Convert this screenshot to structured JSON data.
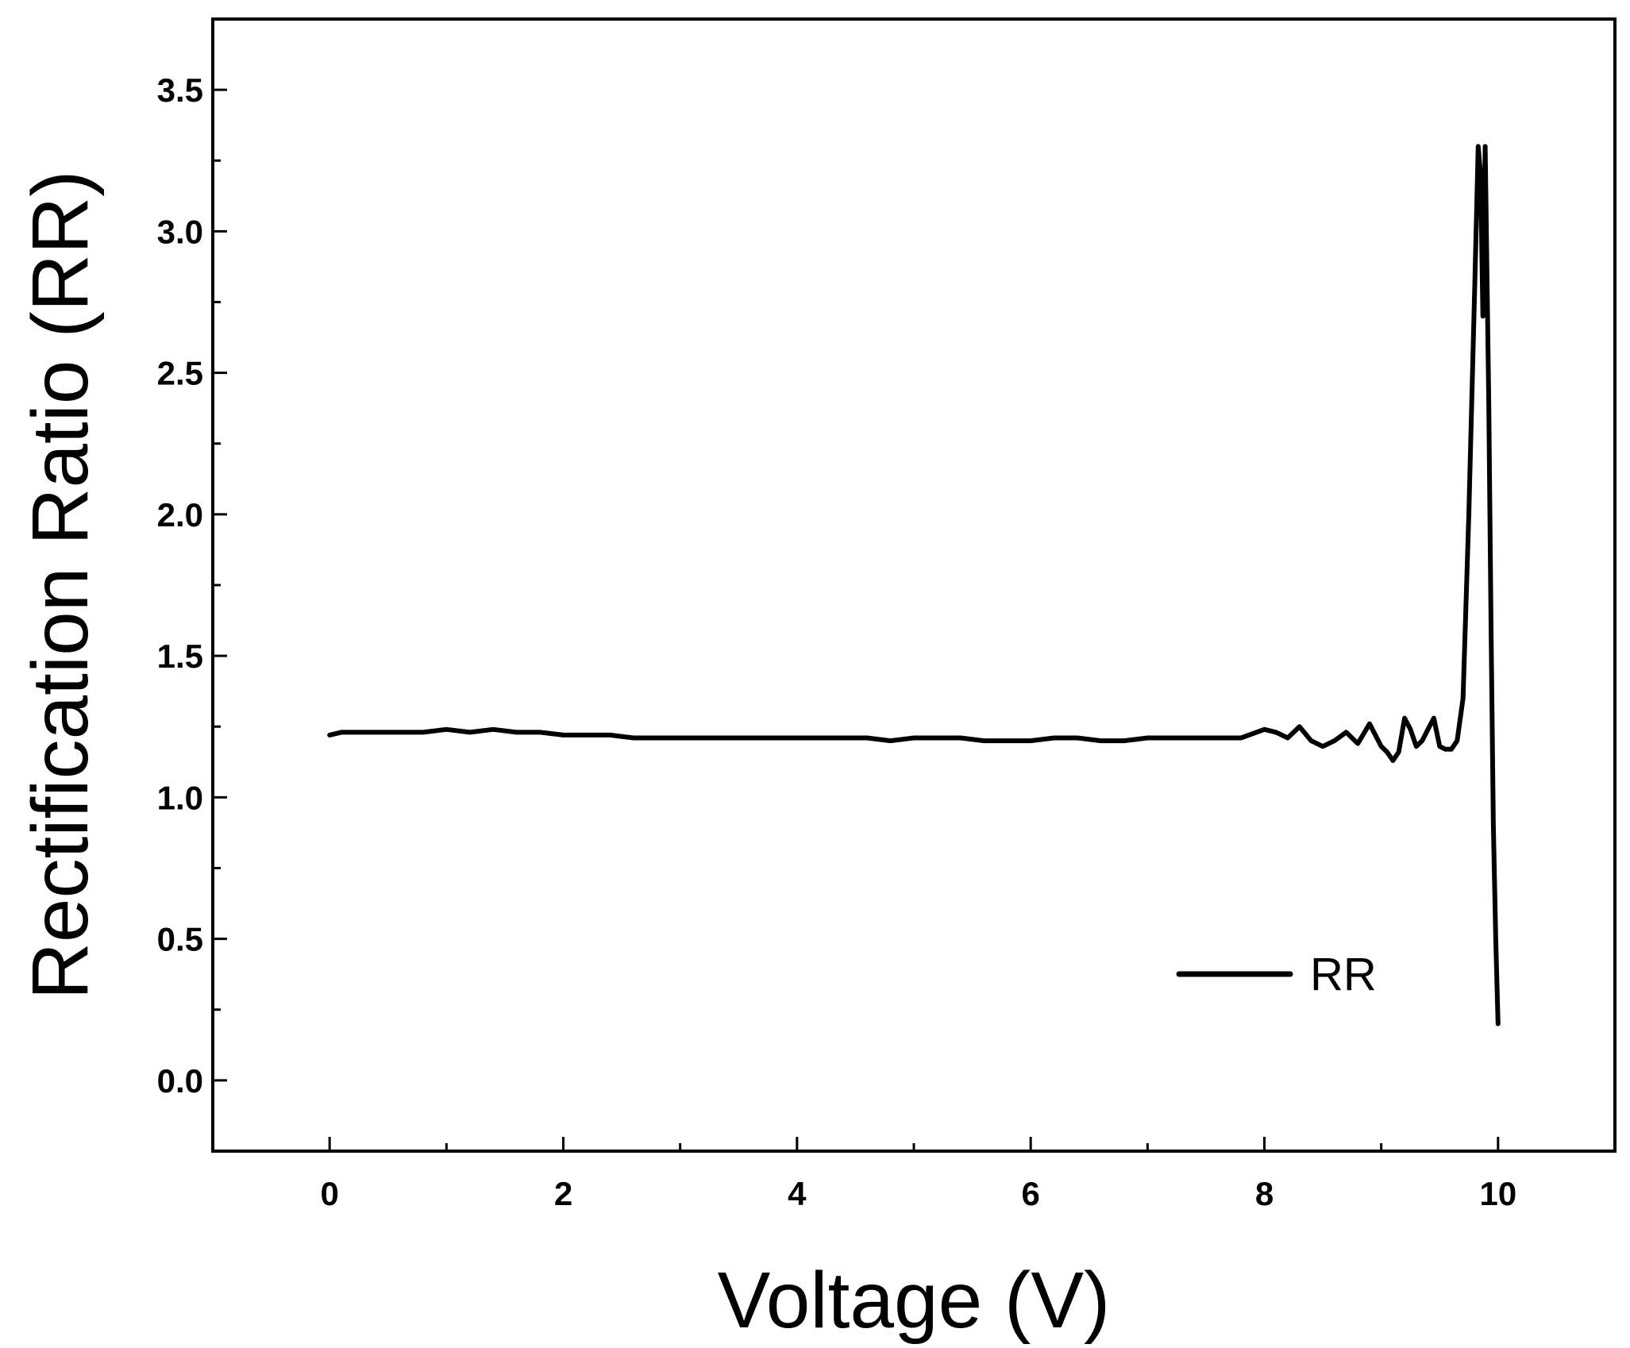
{
  "chart_data": {
    "type": "line",
    "title": "",
    "xlabel": "Voltage (V)",
    "ylabel": "Rectification Ratio (RR)",
    "xlim": [
      -1,
      11
    ],
    "ylim": [
      -0.25,
      3.75
    ],
    "x_ticks": [
      0,
      2,
      4,
      6,
      8,
      10
    ],
    "x_tick_labels": [
      "0",
      "2",
      "4",
      "6",
      "8",
      "10"
    ],
    "x_minor_ticks": [
      1,
      3,
      5,
      7,
      9
    ],
    "y_ticks": [
      0.0,
      0.5,
      1.0,
      1.5,
      2.0,
      2.5,
      3.0,
      3.5
    ],
    "y_tick_labels": [
      "0.0",
      "0.5",
      "1.0",
      "1.5",
      "2.0",
      "2.5",
      "3.0",
      "3.5"
    ],
    "y_minor_ticks": [
      0.25,
      0.75,
      1.25,
      1.75,
      2.25,
      2.75,
      3.25
    ],
    "grid": false,
    "legend_position": "bottom-right",
    "colors": {
      "line": "#000000",
      "axes": "#000000"
    },
    "series": [
      {
        "name": "RR",
        "x": [
          0.0,
          0.1,
          0.2,
          0.4,
          0.6,
          0.8,
          1.0,
          1.2,
          1.4,
          1.6,
          1.8,
          2.0,
          2.2,
          2.4,
          2.6,
          2.8,
          3.0,
          3.2,
          3.4,
          3.6,
          3.8,
          4.0,
          4.2,
          4.4,
          4.6,
          4.8,
          5.0,
          5.2,
          5.4,
          5.6,
          5.8,
          6.0,
          6.2,
          6.4,
          6.6,
          6.8,
          7.0,
          7.2,
          7.4,
          7.6,
          7.8,
          8.0,
          8.1,
          8.2,
          8.3,
          8.4,
          8.5,
          8.6,
          8.7,
          8.8,
          8.9,
          9.0,
          9.05,
          9.1,
          9.15,
          9.2,
          9.25,
          9.3,
          9.35,
          9.4,
          9.45,
          9.5,
          9.55,
          9.6,
          9.65,
          9.7,
          9.75,
          9.8,
          9.83,
          9.85,
          9.87,
          9.89,
          9.9,
          9.92,
          9.94,
          9.96,
          9.98,
          10.0
        ],
        "y": [
          1.22,
          1.23,
          1.23,
          1.23,
          1.23,
          1.23,
          1.24,
          1.23,
          1.24,
          1.23,
          1.23,
          1.22,
          1.22,
          1.22,
          1.21,
          1.21,
          1.21,
          1.21,
          1.21,
          1.21,
          1.21,
          1.21,
          1.21,
          1.21,
          1.21,
          1.2,
          1.21,
          1.21,
          1.21,
          1.2,
          1.2,
          1.2,
          1.21,
          1.21,
          1.2,
          1.2,
          1.21,
          1.21,
          1.21,
          1.21,
          1.21,
          1.24,
          1.23,
          1.21,
          1.25,
          1.2,
          1.18,
          1.2,
          1.23,
          1.19,
          1.26,
          1.18,
          1.16,
          1.13,
          1.16,
          1.28,
          1.24,
          1.18,
          1.2,
          1.24,
          1.28,
          1.18,
          1.17,
          1.17,
          1.2,
          1.35,
          2.0,
          2.8,
          3.3,
          3.2,
          2.7,
          3.3,
          3.0,
          2.4,
          1.6,
          0.9,
          0.5,
          0.2
        ]
      }
    ],
    "legend": [
      {
        "label": "RR"
      }
    ]
  }
}
